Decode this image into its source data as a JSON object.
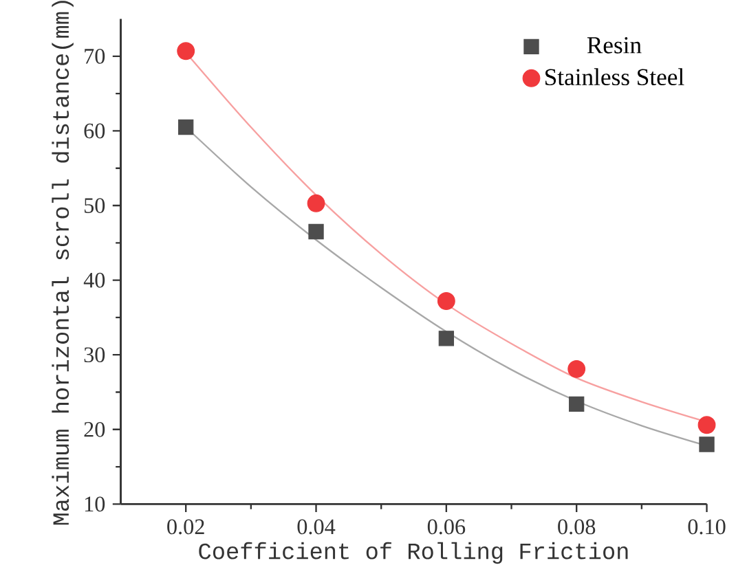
{
  "chart_data": {
    "type": "scatter",
    "xlabel": "Coefficient of Rolling Friction",
    "ylabel": "Maximum horizontal scroll distance(mm)",
    "x": [
      0.02,
      0.04,
      0.06,
      0.08,
      0.1
    ],
    "series": [
      {
        "name": "Resin",
        "color": "#4d4d4d",
        "marker": "square",
        "values": [
          60.5,
          46.5,
          32.2,
          23.4,
          18.0
        ]
      },
      {
        "name": "Stainless Steel",
        "color": "#f0393c",
        "marker": "circle",
        "values": [
          70.7,
          50.3,
          37.2,
          28.1,
          20.6
        ]
      },
      {
        "type": "line",
        "color": "#a8a8a8",
        "x": [
          0.02,
          0.03,
          0.04,
          0.05,
          0.06,
          0.07,
          0.08,
          0.09,
          0.1
        ],
        "values": [
          60.5,
          52.5,
          45.4,
          39.0,
          33.1,
          28.0,
          23.8,
          20.5,
          17.8
        ]
      },
      {
        "type": "line",
        "color": "#f7a0a0",
        "x": [
          0.02,
          0.03,
          0.04,
          0.05,
          0.06,
          0.07,
          0.08,
          0.09,
          0.1
        ],
        "values": [
          70.5,
          60.5,
          51.4,
          43.5,
          36.8,
          31.5,
          26.9,
          23.7,
          21.0
        ]
      }
    ],
    "xlim": [
      0.01,
      0.1
    ],
    "ylim": [
      10,
      75
    ],
    "xticks": [
      0.02,
      0.04,
      0.06,
      0.08,
      {
        "value": 0.1,
        "label": "0.10"
      }
    ],
    "yticks": [
      10,
      20,
      30,
      40,
      50,
      60,
      70
    ],
    "legend": "top right",
    "grid": false
  }
}
